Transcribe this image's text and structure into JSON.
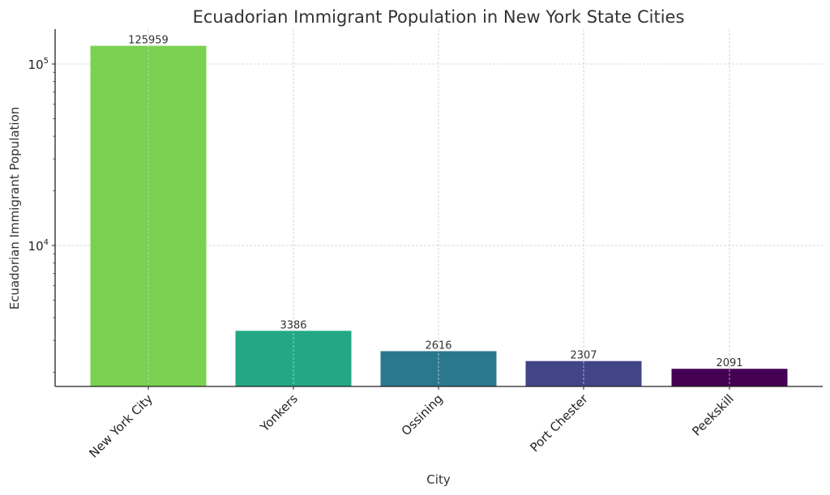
{
  "chart_data": {
    "type": "bar",
    "title": "Ecuadorian Immigrant Population in New York State Cities",
    "xlabel": "City",
    "ylabel": "Ecuadorian Immigrant Population",
    "yscale": "log",
    "ylim": [
      1670,
      155000
    ],
    "yticks": [
      {
        "value": 10000,
        "label": "10",
        "exp": "4"
      },
      {
        "value": 100000,
        "label": "10",
        "exp": "5"
      }
    ],
    "grid": true,
    "legend": null,
    "categories": [
      "New York City",
      "Yonkers",
      "Ossining",
      "Port Chester",
      "Peekskill"
    ],
    "values": [
      125959,
      3386,
      2616,
      2307,
      2091
    ],
    "value_labels": [
      "125959",
      "3386",
      "2616",
      "2307",
      "2091"
    ],
    "colors": [
      "#7ad151",
      "#22a884",
      "#2a788e",
      "#414487",
      "#440154"
    ]
  }
}
